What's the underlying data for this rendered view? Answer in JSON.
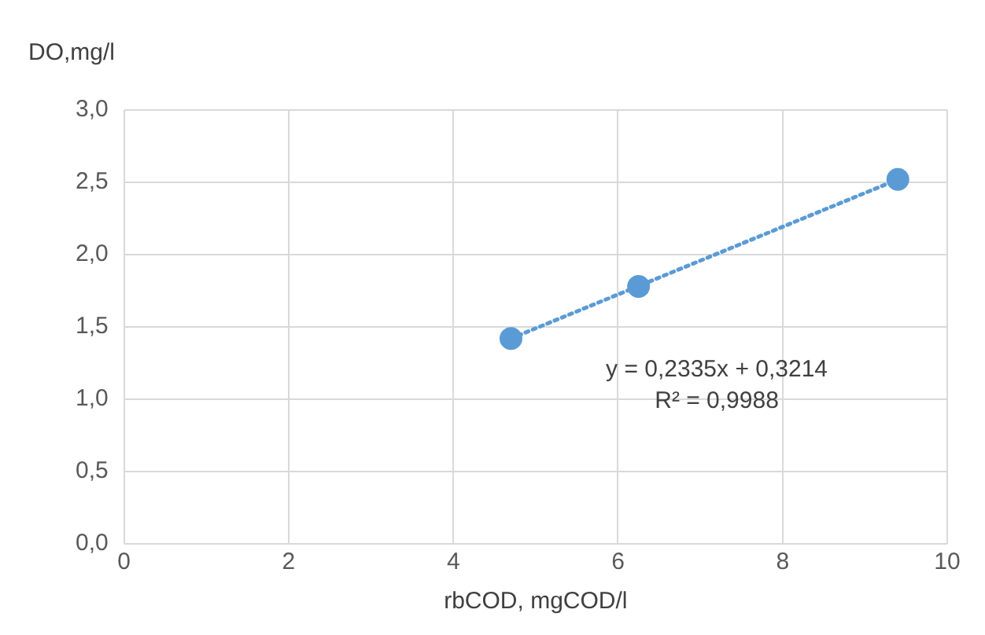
{
  "chart_data": {
    "type": "scatter",
    "xlabel": "rbCOD, mgCOD/l",
    "ylabel": "DO,mg/l",
    "x": [
      4.7,
      6.25,
      9.4
    ],
    "series": [
      {
        "color": "#5b9bd5",
        "values": [
          1.42,
          1.78,
          2.52
        ]
      },
      {
        "type": "line",
        "color": "#5b9bd5",
        "line_style": "dotted",
        "marker": "none",
        "x": [
          4.7,
          9.4
        ],
        "values": [
          1.42,
          2.52
        ]
      }
    ],
    "annotations": [
      "y = 0,2335x + 0,3214",
      "R² = 0,9988"
    ],
    "marker": "circle",
    "grid": true,
    "legend": false,
    "xlim": [
      0,
      10
    ],
    "xticks": [
      0,
      2,
      4,
      6,
      8,
      10
    ],
    "ylim": [
      0,
      3
    ],
    "yticks": [
      {
        "value": 0,
        "label": "0,0"
      },
      {
        "value": 0.5,
        "label": "0,5"
      },
      {
        "value": 1,
        "label": "1,0"
      },
      {
        "value": 1.5,
        "label": "1,5"
      },
      {
        "value": 2,
        "label": "2,0"
      },
      {
        "value": 2.5,
        "label": "2,5"
      },
      {
        "value": 3,
        "label": "3,0"
      }
    ]
  }
}
